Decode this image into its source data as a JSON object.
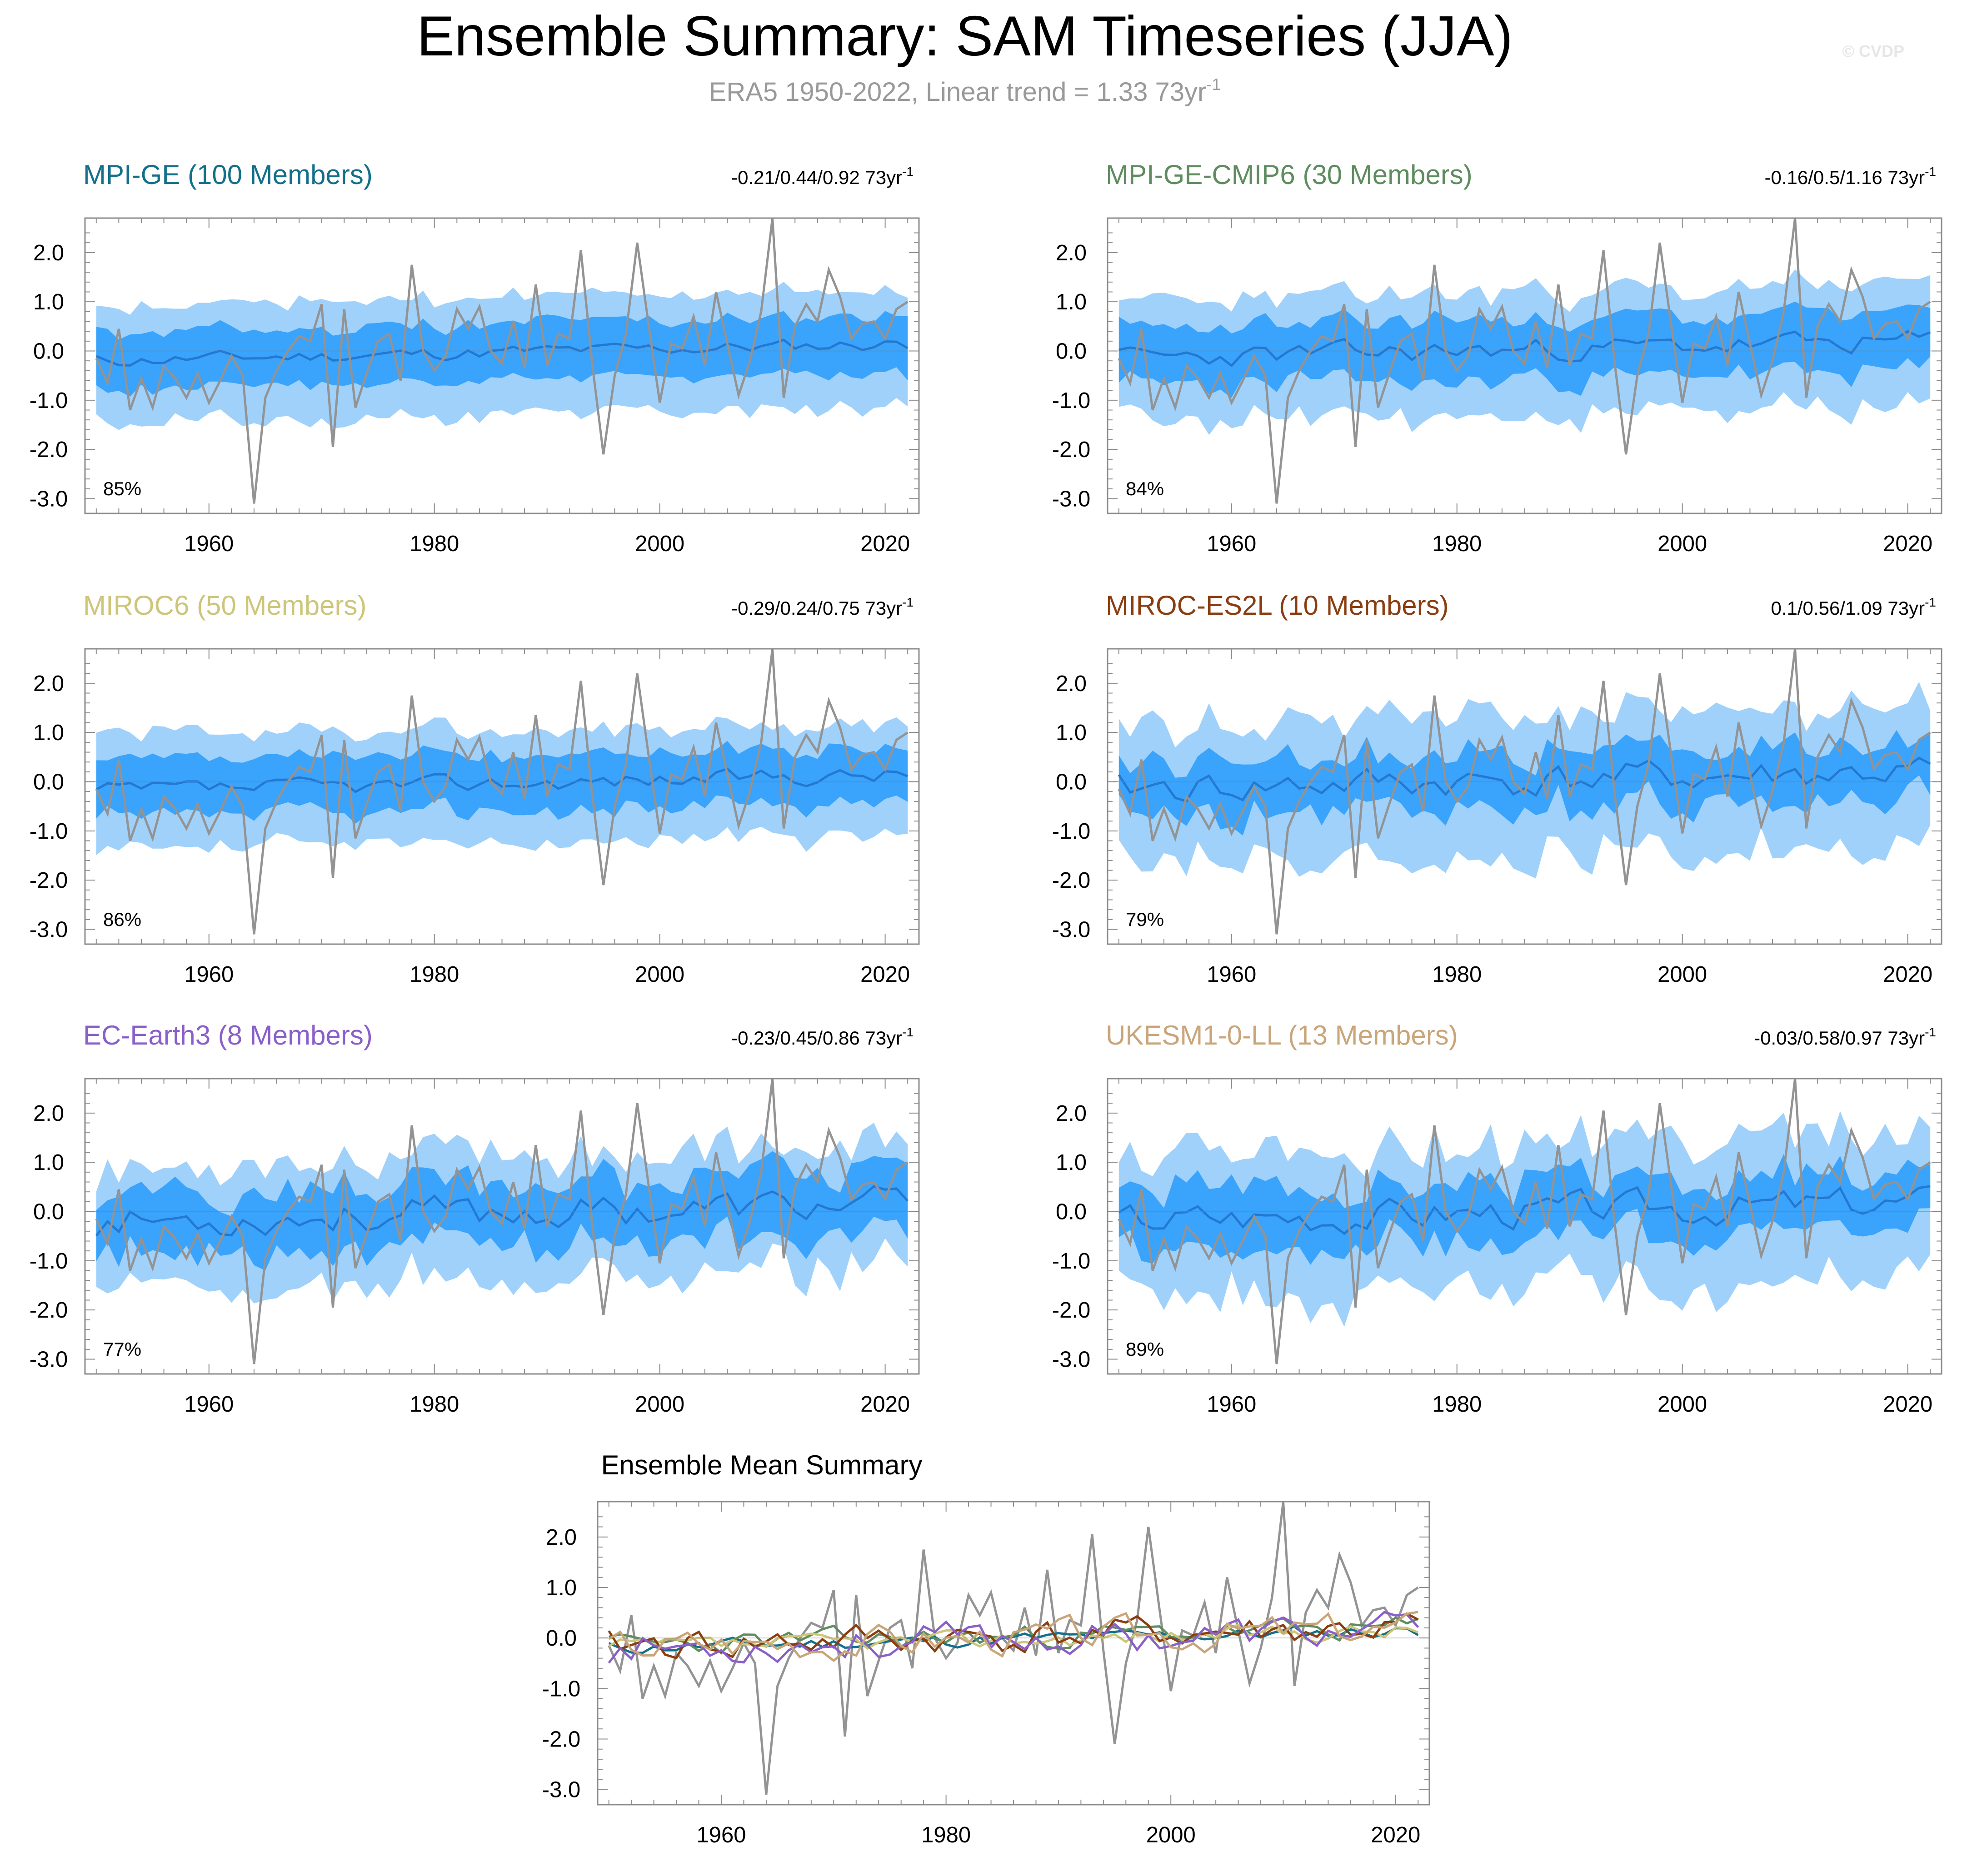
{
  "title": "Ensemble Summary: SAM Timeseries (JJA)",
  "subtitle": "ERA5 1950-2022, Linear trend = 1.33 73yr",
  "subtitle_sup": "-1",
  "watermark": "© CVDP",
  "ensemble_mean_title": "Ensemble Mean Summary",
  "colors": {
    "band_outer": "#9fd1fb",
    "band_inner": "#3aa3fb",
    "mean_line": "#2478d0",
    "obs_line": "#939393"
  },
  "chart_data": {
    "type": "line",
    "x_start": 1950,
    "x_end": 2022,
    "xlim": [
      1949,
      2023
    ],
    "ylim": [
      -3.3,
      2.7
    ],
    "yticks": [
      2.0,
      1.0,
      0.0,
      -1.0,
      -2.0,
      -3.0
    ],
    "ytick_labels": [
      "2.0",
      "1.0",
      "0.0",
      "-1.0",
      "-2.0",
      "-3.0"
    ],
    "xticks": [
      1960,
      1980,
      2000,
      2020
    ],
    "xtick_labels": [
      "1960",
      "1980",
      "2000",
      "2020"
    ],
    "trend_unit": "73yr",
    "trend_sup": "-1",
    "observed": {
      "name": "ERA5",
      "values": [
        -0.15,
        -0.65,
        0.45,
        -1.2,
        -0.55,
        -1.15,
        -0.3,
        -0.55,
        -0.95,
        -0.45,
        -1.05,
        -0.6,
        -0.1,
        -0.5,
        -3.1,
        -0.95,
        -0.4,
        0.0,
        0.3,
        0.2,
        0.95,
        -1.95,
        0.85,
        -1.15,
        -0.45,
        0.2,
        0.35,
        -0.6,
        1.75,
        0.0,
        -0.4,
        -0.1,
        0.85,
        0.45,
        0.9,
        0.0,
        -0.25,
        0.6,
        -0.35,
        1.35,
        -0.3,
        0.35,
        0.25,
        2.05,
        -0.25,
        -2.1,
        -0.5,
        0.35,
        2.2,
        0.55,
        -1.05,
        0.15,
        0.05,
        0.7,
        -0.3,
        1.2,
        0.15,
        -0.9,
        -0.2,
        0.8,
        2.7,
        -0.95,
        0.5,
        0.95,
        0.6,
        1.65,
        1.1,
        0.25,
        0.55,
        0.6,
        0.25,
        0.85,
        1.0
      ]
    },
    "panels": [
      {
        "name": "MPI-GE (100 Members)",
        "color": "#146f8a",
        "trend": "-0.21/0.44/0.92 73yr",
        "pct": "85%",
        "mean": -0.05,
        "inner": 0.58,
        "outer": 1.15,
        "inner_noise": 0.08,
        "outer_noise": 0.12,
        "mean_noise": 0.12,
        "seed": 11
      },
      {
        "name": "MPI-GE-CMIP6 (30 Members)",
        "color": "#5e8c5e",
        "trend": "-0.16/0.5/1.16 73yr",
        "pct": "84%",
        "mean": 0.0,
        "inner": 0.6,
        "outer": 1.2,
        "inner_noise": 0.12,
        "outer_noise": 0.15,
        "mean_noise": 0.2,
        "seed": 23
      },
      {
        "name": "MIROC6 (50 Members)",
        "color": "#cdc67a",
        "trend": "-0.29/0.24/0.75 73yr",
        "pct": "86%",
        "mean": -0.05,
        "inner": 0.55,
        "outer": 1.1,
        "inner_noise": 0.1,
        "outer_noise": 0.12,
        "mean_noise": 0.15,
        "seed": 37
      },
      {
        "name": "MIROC-ES2L (10 Members)",
        "color": "#8a3d10",
        "trend": "0.1/0.56/1.09 73yr",
        "pct": "79%",
        "mean": 0.0,
        "inner": 0.55,
        "outer": 1.35,
        "inner_noise": 0.2,
        "outer_noise": 0.3,
        "mean_noise": 0.3,
        "seed": 41
      },
      {
        "name": "EC-Earth3 (8 Members)",
        "color": "#8a5fc9",
        "trend": "-0.23/0.45/0.86 73yr",
        "pct": "77%",
        "mean": -0.05,
        "inner": 0.6,
        "outer": 1.2,
        "inner_noise": 0.25,
        "outer_noise": 0.3,
        "mean_noise": 0.3,
        "seed": 53
      },
      {
        "name": "UKESM1-0-LL (13 Members)",
        "color": "#c9a57a",
        "trend": "-0.03/0.58/0.97 73yr",
        "pct": "89%",
        "mean": 0.0,
        "inner": 0.6,
        "outer": 1.4,
        "inner_noise": 0.2,
        "outer_noise": 0.35,
        "mean_noise": 0.3,
        "seed": 67
      }
    ],
    "ensemble_mean_lines": [
      {
        "name": "MPI-GE",
        "color": "#146f8a",
        "seed": 11
      },
      {
        "name": "MPI-GE-CMIP6",
        "color": "#5e8c5e",
        "seed": 23
      },
      {
        "name": "MIROC6",
        "color": "#cdc67a",
        "seed": 37
      },
      {
        "name": "MIROC-ES2L",
        "color": "#8a3d10",
        "seed": 41
      },
      {
        "name": "EC-Earth3",
        "color": "#8a5fc9",
        "seed": 53
      },
      {
        "name": "UKESM1-0-LL",
        "color": "#c9a57a",
        "seed": 67
      }
    ]
  }
}
